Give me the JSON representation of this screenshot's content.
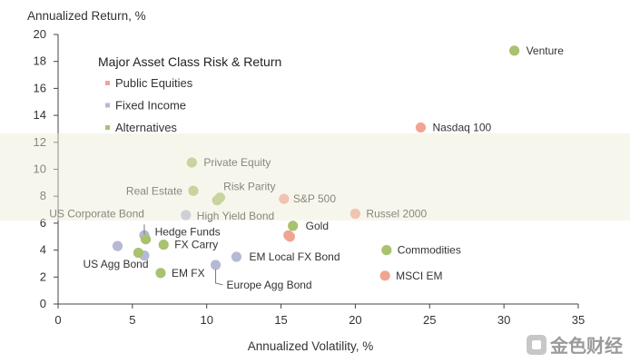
{
  "chart_data": {
    "type": "scatter",
    "title": "Major Asset Class Risk & Return",
    "xlabel": "Annualized Volatility, %",
    "ylabel": "Annualized Return, %",
    "xlim": [
      0,
      35
    ],
    "ylim": [
      0,
      20
    ],
    "xticks": [
      0,
      5,
      10,
      15,
      20,
      25,
      30,
      35
    ],
    "yticks": [
      0,
      2,
      4,
      6,
      8,
      10,
      12,
      14,
      16,
      18,
      20
    ],
    "grid": false,
    "legend_position": "top-left",
    "colors": {
      "Public Equities": "#f0a592",
      "Fixed Income": "#b6b9d4",
      "Alternatives": "#a8c270"
    },
    "series": [
      {
        "name": "Public Equities",
        "points": [
          {
            "label": "Nasdaq 100",
            "x": 24.4,
            "y": 13.1
          },
          {
            "label": "Russel 2000",
            "x": 20.0,
            "y": 6.7
          },
          {
            "label": "MSCI EM",
            "x": 22.0,
            "y": 2.1
          },
          {
            "label": "S&P 500",
            "x": 15.2,
            "y": 7.8
          },
          {
            "label": "",
            "x": 15.5,
            "y": 5.1
          },
          {
            "label": "",
            "x": 15.6,
            "y": 5.0
          }
        ]
      },
      {
        "name": "Fixed Income",
        "points": [
          {
            "label": "US Corporate Bond",
            "x": 5.8,
            "y": 5.1
          },
          {
            "label": "US Agg Bond",
            "x": 4.0,
            "y": 4.3
          },
          {
            "label": "",
            "x": 5.8,
            "y": 3.6
          },
          {
            "label": "High Yield Bond",
            "x": 8.6,
            "y": 6.6
          },
          {
            "label": "EM Local FX Bond",
            "x": 12.0,
            "y": 3.5
          },
          {
            "label": "Europe Agg Bond",
            "x": 10.6,
            "y": 2.9
          }
        ]
      },
      {
        "name": "Alternatives",
        "points": [
          {
            "label": "Venture",
            "x": 30.7,
            "y": 18.8
          },
          {
            "label": "Commodities",
            "x": 22.1,
            "y": 4.0
          },
          {
            "label": "Gold",
            "x": 15.8,
            "y": 5.8
          },
          {
            "label": "Real Estate",
            "x": 9.1,
            "y": 8.4
          },
          {
            "label": "Risk Parity",
            "x": 10.7,
            "y": 7.7
          },
          {
            "label": "",
            "x": 10.9,
            "y": 7.9
          },
          {
            "label": "Private Equity",
            "x": 9.0,
            "y": 10.5
          },
          {
            "label": "Hedge Funds",
            "x": 5.9,
            "y": 4.8
          },
          {
            "label": "FX Carry",
            "x": 7.1,
            "y": 4.4
          },
          {
            "label": "",
            "x": 5.4,
            "y": 3.8
          },
          {
            "label": "EM FX",
            "x": 6.9,
            "y": 2.3
          }
        ]
      }
    ]
  },
  "watermark": {
    "text": "金色财经"
  }
}
